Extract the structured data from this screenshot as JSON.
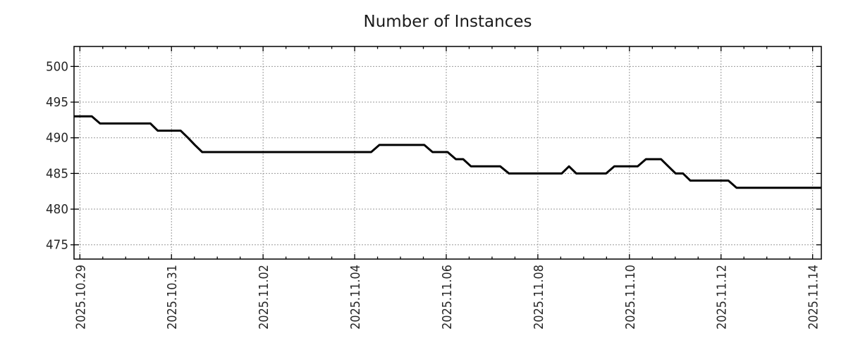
{
  "chart_data": {
    "type": "line",
    "title": "Number of Instances",
    "x_unit": "days since 2025-10-29 00:00",
    "x_domain": [
      -0.128,
      16.19
    ],
    "y_domain": [
      473.0,
      502.8
    ],
    "x_major_ticks": [
      {
        "pos": 0,
        "label": "2025.10.29"
      },
      {
        "pos": 2,
        "label": "2025.10.31"
      },
      {
        "pos": 4,
        "label": "2025.11.02"
      },
      {
        "pos": 6,
        "label": "2025.11.04"
      },
      {
        "pos": 8,
        "label": "2025.11.06"
      },
      {
        "pos": 10,
        "label": "2025.11.08"
      },
      {
        "pos": 12,
        "label": "2025.11.10"
      },
      {
        "pos": 14,
        "label": "2025.11.12"
      },
      {
        "pos": 16,
        "label": "2025.11.14"
      }
    ],
    "x_minor_interval": 0.5,
    "y_ticks": [
      475,
      480,
      485,
      490,
      495,
      500
    ],
    "grid": {
      "show": true,
      "color": "#999999",
      "dash": "2 2"
    },
    "line": {
      "color": "#000000",
      "width": 3
    },
    "border_color": "#000000",
    "series": [
      {
        "name": "instances",
        "points": [
          [
            -0.13,
            493
          ],
          [
            0.26,
            493
          ],
          [
            0.44,
            492
          ],
          [
            1.54,
            492
          ],
          [
            1.7,
            491
          ],
          [
            2.2,
            491
          ],
          [
            2.36,
            490
          ],
          [
            2.51,
            489
          ],
          [
            2.67,
            488
          ],
          [
            6.36,
            488
          ],
          [
            6.54,
            489
          ],
          [
            7.52,
            489
          ],
          [
            7.7,
            488
          ],
          [
            8.03,
            488
          ],
          [
            8.21,
            487
          ],
          [
            8.37,
            487
          ],
          [
            8.54,
            486
          ],
          [
            9.18,
            486
          ],
          [
            9.37,
            485
          ],
          [
            10.52,
            485
          ],
          [
            10.68,
            486
          ],
          [
            10.84,
            485
          ],
          [
            11.49,
            485
          ],
          [
            11.67,
            486
          ],
          [
            12.18,
            486
          ],
          [
            12.36,
            487
          ],
          [
            12.69,
            487
          ],
          [
            12.85,
            486
          ],
          [
            13.01,
            485
          ],
          [
            13.17,
            485
          ],
          [
            13.33,
            484
          ],
          [
            14.16,
            484
          ],
          [
            14.34,
            483
          ],
          [
            16.19,
            483
          ]
        ]
      }
    ]
  }
}
